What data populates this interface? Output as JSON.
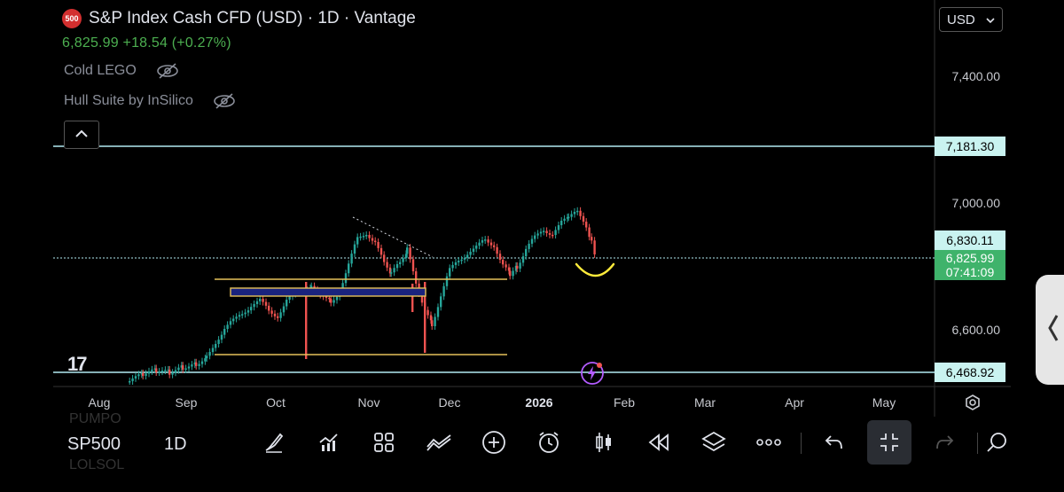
{
  "header": {
    "symbol_badge": "500",
    "title": "S&P Index Cash CFD (USD) · 1D · Vantage",
    "price_line": "6,825.99  +18.54 (+0.27%)",
    "indicators": [
      {
        "label": "Cold LEGO"
      },
      {
        "label": "Hull Suite by InSilico"
      }
    ]
  },
  "currency": {
    "label": "USD"
  },
  "price_axis": {
    "labels": [
      "7,400.00",
      "7,000.00",
      "6,600.00"
    ],
    "tags": {
      "upper_line": "7,181.30",
      "prev_close": "6,830.11",
      "last_price": "6,825.99",
      "countdown": "07:41:09",
      "lower_line": "6,468.92"
    }
  },
  "time_axis": {
    "labels": [
      "Aug",
      "Sep",
      "Oct",
      "Nov",
      "Dec",
      "2026",
      "Feb",
      "Mar",
      "Apr",
      "May"
    ]
  },
  "watermark": "17",
  "colors": {
    "up": "#26a69a",
    "down": "#ef5350",
    "hline": "#b2ebf2",
    "zone": "#e6c15a",
    "annotation": "#ffeb3b",
    "price_up": "#4caf50"
  },
  "bottom_bar": {
    "symbol": "SP500",
    "interval": "1D",
    "tools": [
      "brush-icon",
      "indicators-icon",
      "templates-icon",
      "compare-icon",
      "add-icon",
      "alert-icon",
      "candle-type-icon",
      "replay-icon",
      "layers-icon",
      "more-icon",
      "undo-icon",
      "collapse-icon",
      "redo-icon"
    ]
  }
}
